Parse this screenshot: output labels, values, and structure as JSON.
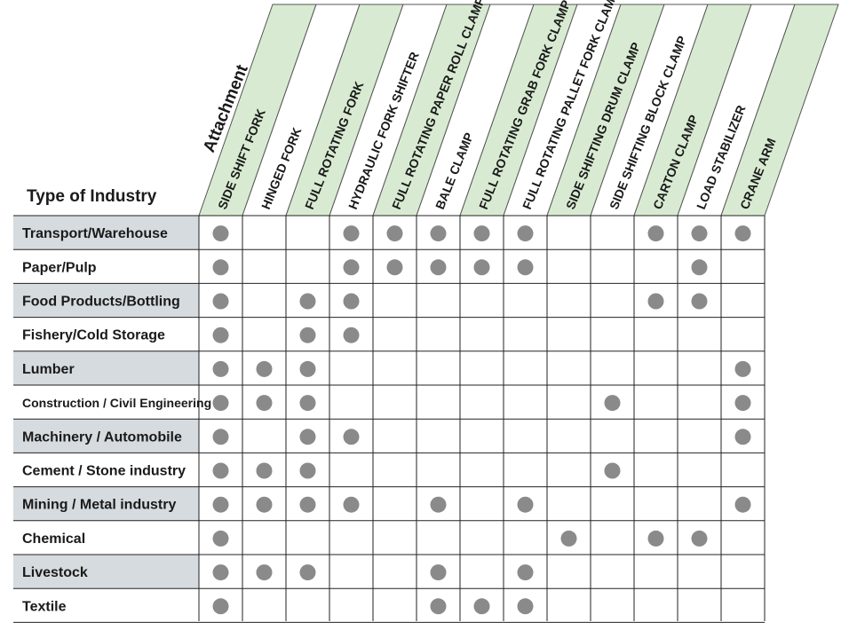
{
  "header": {
    "attachment_label": "Attachment",
    "type_label": "Type of Industry"
  },
  "colors": {
    "header_band": "#d8ebd2",
    "row_shade": "#d5dbdf",
    "dot": "#8a8a8a"
  },
  "columns": [
    "SIDE SHIFT FORK",
    "HINGED FORK",
    "FULL ROTATING FORK",
    "HYDRAULIC FORK SHIFTER",
    "FULL ROTATING PAPER ROLL CLAMP",
    "BALE CLAMP",
    "FULL ROTATING GRAB FORK CLAMP",
    "FULL ROTATING PALLET FORK CLAMP",
    "SIDE SHIFTING DRUM CLAMP",
    "SIDE SHIFTING BLOCK CLAMP",
    "CARTON CLAMP",
    "LOAD STABILIZER",
    "CRANE ARM"
  ],
  "rows": [
    {
      "name": "Transport/Warehouse",
      "shaded": true,
      "marks": [
        1,
        0,
        0,
        1,
        1,
        1,
        1,
        1,
        0,
        0,
        1,
        1,
        1
      ]
    },
    {
      "name": "Paper/Pulp",
      "shaded": false,
      "marks": [
        1,
        0,
        0,
        1,
        1,
        1,
        1,
        1,
        0,
        0,
        0,
        1,
        0
      ]
    },
    {
      "name": "Food Products/Bottling",
      "shaded": true,
      "marks": [
        1,
        0,
        1,
        1,
        0,
        0,
        0,
        0,
        0,
        0,
        1,
        1,
        0
      ]
    },
    {
      "name": "Fishery/Cold Storage",
      "shaded": false,
      "marks": [
        1,
        0,
        1,
        1,
        0,
        0,
        0,
        0,
        0,
        0,
        0,
        0,
        0
      ]
    },
    {
      "name": "Lumber",
      "shaded": true,
      "marks": [
        1,
        1,
        1,
        0,
        0,
        0,
        0,
        0,
        0,
        0,
        0,
        0,
        1
      ]
    },
    {
      "name": "Construction / Civil Engineering",
      "shaded": false,
      "small": true,
      "marks": [
        1,
        1,
        1,
        0,
        0,
        0,
        0,
        0,
        0,
        1,
        0,
        0,
        1
      ]
    },
    {
      "name": "Machinery / Automobile",
      "shaded": true,
      "marks": [
        1,
        0,
        1,
        1,
        0,
        0,
        0,
        0,
        0,
        0,
        0,
        0,
        1
      ]
    },
    {
      "name": "Cement / Stone industry",
      "shaded": false,
      "marks": [
        1,
        1,
        1,
        0,
        0,
        0,
        0,
        0,
        0,
        1,
        0,
        0,
        0
      ]
    },
    {
      "name": "Mining / Metal industry",
      "shaded": true,
      "marks": [
        1,
        1,
        1,
        1,
        0,
        1,
        0,
        1,
        0,
        0,
        0,
        0,
        1
      ]
    },
    {
      "name": "Chemical",
      "shaded": false,
      "marks": [
        1,
        0,
        0,
        0,
        0,
        0,
        0,
        0,
        1,
        0,
        1,
        1,
        0
      ]
    },
    {
      "name": "Livestock",
      "shaded": true,
      "marks": [
        1,
        1,
        1,
        0,
        0,
        1,
        0,
        1,
        0,
        0,
        0,
        0,
        0
      ]
    },
    {
      "name": "Textile",
      "shaded": false,
      "marks": [
        1,
        0,
        0,
        0,
        0,
        1,
        1,
        1,
        0,
        0,
        0,
        0,
        0
      ]
    }
  ]
}
